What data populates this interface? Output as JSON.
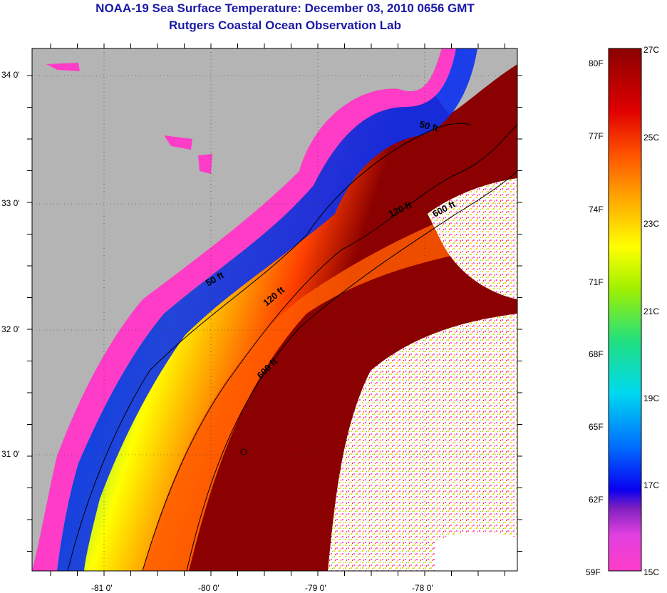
{
  "header": {
    "title": "NOAA-19 Sea Surface Temperature:  December 03, 2010 0656 GMT",
    "subtitle": "Rutgers Coastal Ocean Observation Lab"
  },
  "map": {
    "lat_labels": [
      "34 0'",
      "33 0'",
      "32 0'",
      "31 0'"
    ],
    "lon_labels": [
      "-81 0'",
      "-80 0'",
      "-79 0'",
      "-78 0'"
    ],
    "contours": [
      "50 ft",
      "50 ft",
      "120 ft",
      "120 ft",
      "600 ft",
      "600 ft"
    ],
    "colors": {
      "land": "#b4b4b4",
      "warm": "#8b0000",
      "cloud": "#ffffff"
    }
  },
  "colorbar": {
    "fahrenheit": [
      "80F",
      "77F",
      "74F",
      "71F",
      "68F",
      "65F",
      "62F",
      "59F"
    ],
    "celsius": [
      "27C",
      "25C",
      "23C",
      "21C",
      "19C",
      "17C",
      "15C"
    ],
    "stops": [
      "#ff3cc8",
      "#c030e0",
      "#0a00f0",
      "#0070ff",
      "#00e0e0",
      "#30e030",
      "#ffff00",
      "#ffa000",
      "#ff4000",
      "#e00000",
      "#8b0000"
    ]
  }
}
